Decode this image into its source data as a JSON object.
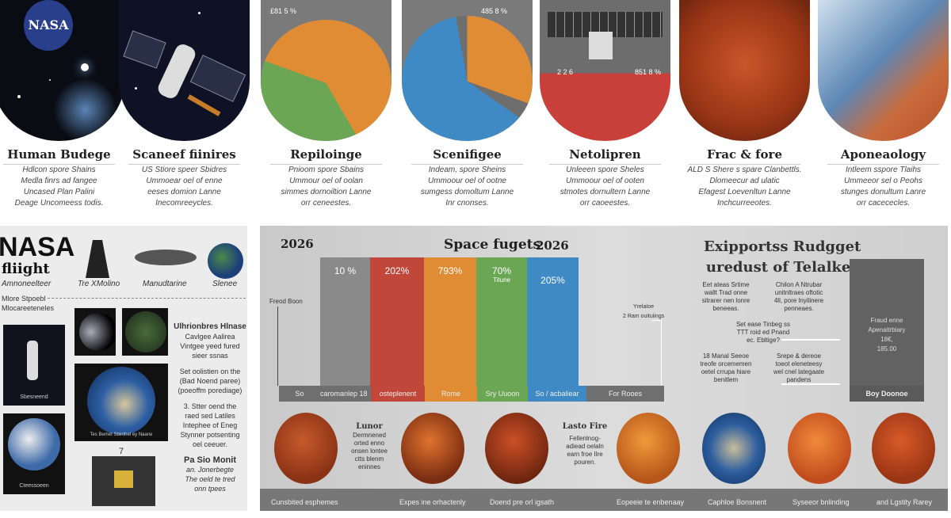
{
  "top_cards": [
    {
      "title": "Human Budege",
      "lines": [
        "Hdlcon spore Shains",
        "Medla finrs ad fangee",
        "Uncased Plan Palini",
        "Deage Uncomeess todis."
      ],
      "art": "nasa-logo-starfield",
      "logo": "NASA"
    },
    {
      "title": "Scaneef fiinires",
      "lines": [
        "US Stiore speer Sbidres",
        "Ummoear oel of enne",
        "eeses domion Lanne",
        "Inecomreeycles."
      ],
      "art": "astronaut-satellite"
    },
    {
      "title": "Repiloinge",
      "lines": [
        "Pnioom spore Sbains",
        "Ummour oel of oolan",
        "simmes dornoiltion Lanne",
        "orr ceneestes."
      ],
      "art": "pie-orange-green",
      "annotation": "£81 5 %"
    },
    {
      "title": "Scenifigee",
      "lines": [
        "Indeam, spore Sheins",
        "Ummoour oel of ootne",
        "sumgess domoltum Lanne",
        "Inr cnonses."
      ],
      "art": "pie-blue-orange",
      "annotation": "485 8 %"
    },
    {
      "title": "Netolipren",
      "lines": [
        "Unleeen spore Sheles",
        "Ummoour oel of ooten",
        "stmotes dornultern Lanne",
        "orr caoeestes."
      ],
      "art": "satellite-red-field",
      "annotations": [
        "2 2 6",
        "851 8 %"
      ]
    },
    {
      "title": "Frac & fore",
      "lines": [
        "ALD S Shere s spare Clanbettls.",
        "Dlomeecur ad ulatic",
        "Efagest Loevenltun Lanne",
        "Inchcurreeotes."
      ],
      "art": "mars"
    },
    {
      "title": "Aponeaology",
      "lines": [
        "Intleem sspore Tlaihs",
        "Ummeeor sel o Peohs",
        "stunges donultum Lanre",
        "orr cacececles."
      ],
      "art": "earth-clouds"
    }
  ],
  "left_panel": {
    "logo_line1": "NASA",
    "logo_line2": "fliight",
    "icon_labels": [
      "Amnoneelteer",
      "Tre XMolino",
      "Manudtarine",
      "Slenee"
    ],
    "subheading": [
      "Mlore Stpoebl",
      "Mlocareeteneles"
    ],
    "poster_captions": [
      "Sbesneend",
      "Cteessoeen"
    ],
    "earth_caption": "Tes Bemet Sbinthel ey Naane",
    "notes": [
      {
        "title": "Ulhrionbres Hlnase",
        "lines": [
          "Cavlgee Aalirea",
          "Vintgee yeed fured",
          "sieer ssnas"
        ]
      },
      {
        "title": "",
        "lines": [
          "Set oolistien on the",
          "(Bad Noend paree)",
          "(poeoffm porediage)"
        ]
      },
      {
        "title": "",
        "lines": [
          "3. Stter oend the",
          "raed sed Latiles",
          "Intephee of Eneg",
          "Stynner potsenting",
          "oel ceeuer."
        ]
      },
      {
        "title": "Pa Sio Monit",
        "lines": [
          "an. Jonerbegte",
          "The oeld te tred",
          "onn tpees"
        ]
      }
    ],
    "diagram_marker": "7"
  },
  "right_panel": {
    "year_left": "2026",
    "title": "Space fugets",
    "year_right": "2026",
    "axis_label": "Freod Boon",
    "bars": [
      {
        "label": "10 %",
        "color": "#8a8a8a"
      },
      {
        "label": "202%",
        "color": "#c0473a"
      },
      {
        "label": "793%",
        "color": "#e08c34"
      },
      {
        "label": "70%",
        "sub": "Titune",
        "color": "#6aa654"
      },
      {
        "label": "205%",
        "color": "#3f8ac4"
      }
    ],
    "base_labels": [
      "So",
      "caromanlep 18",
      "osteplenent",
      "Rome",
      "Sry Uuoon",
      "So / acbaliear",
      "For Rooes"
    ],
    "callout": [
      "Yrelatoe",
      "2 Ram ouituiings"
    ],
    "side_title": [
      "Exipportss Rudgget",
      "uredust of Telalkes"
    ],
    "side_blocks": [
      [
        "Eet ateas Srtime",
        "wallt Trad onne",
        "sitrarer nen lonre",
        "beneeas."
      ],
      [
        "Chilon A Ntrubar",
        "unitnltraes oftotic",
        "4ll, pore lnyilinere",
        "penneaes."
      ],
      [
        "Set ease Tinbeg ss",
        "TTT roid ed Pnand",
        "ec. Ebltige?"
      ],
      [
        "18 Manal Seeoe",
        "treofe orcememen",
        "oetel crrupa hiare",
        "benitlem"
      ],
      [
        "Srepe & dereoe",
        "toeot eleneteesy",
        "wel cnel lategaate",
        "pandens"
      ]
    ],
    "dark_box": {
      "lines": [
        "Fraud enne",
        "Apenaitrbiary",
        "18€,",
        "185.00"
      ],
      "footer": "Boy Doonoe"
    },
    "planet_texts": [
      {
        "title": "Lunor",
        "lines": [
          "Dermnened",
          "orted enno",
          "onsen lontee",
          "ctts blenm",
          "eninnes"
        ]
      },
      {
        "title": "Lasto Fire",
        "lines": [
          "Fellenlnog-",
          "adiead oelaln",
          "earn froe Ilre",
          "pouren."
        ]
      }
    ],
    "strip_labels": [
      "Cunsbited esphemes",
      "Expes ine orhactenly",
      "Doend pre orl igsath",
      "Eopeeie te enbenaay",
      "Caphloe Bonsnent",
      "Syseeor bnlinding",
      "and Lgstity Rarey"
    ]
  },
  "colors": {
    "orange": "#e08c34",
    "green": "#6aa654",
    "blue": "#3f8ac4",
    "red": "#c0473a",
    "mars": "#b8481f",
    "space": "#0d1020"
  }
}
